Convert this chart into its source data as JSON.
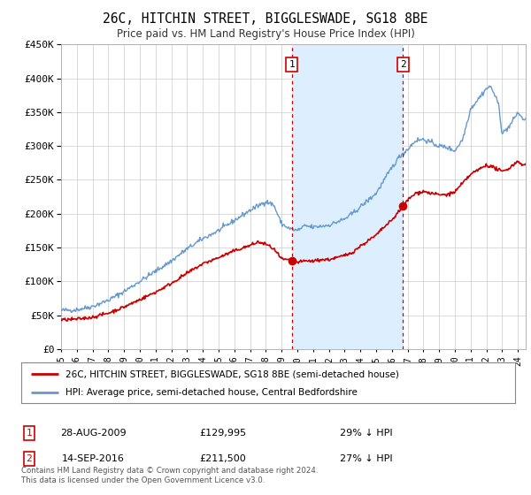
{
  "title": "26C, HITCHIN STREET, BIGGLESWADE, SG18 8BE",
  "subtitle": "Price paid vs. HM Land Registry's House Price Index (HPI)",
  "red_label": "26C, HITCHIN STREET, BIGGLESWADE, SG18 8BE (semi-detached house)",
  "blue_label": "HPI: Average price, semi-detached house, Central Bedfordshire",
  "footer": "Contains HM Land Registry data © Crown copyright and database right 2024.\nThis data is licensed under the Open Government Licence v3.0.",
  "sale1_date": "28-AUG-2009",
  "sale1_price": "£129,995",
  "sale1_hpi": "29% ↓ HPI",
  "sale1_year": 2009.65,
  "sale1_value": 129995,
  "sale2_date": "14-SEP-2016",
  "sale2_price": "£211,500",
  "sale2_hpi": "27% ↓ HPI",
  "sale2_year": 2016.7,
  "sale2_value": 211500,
  "red_color": "#cc0000",
  "blue_color": "#6699cc",
  "shading_color": "#ddeeff",
  "ylim": [
    0,
    450000
  ],
  "xlim_start": 1995.0,
  "xlim_end": 2024.5,
  "background_color": "#ffffff",
  "grid_color": "#cccccc",
  "hpi_anchors_x": [
    1995,
    1996,
    1997,
    1998,
    1999,
    2000,
    2001,
    2002,
    2003,
    2004,
    2005,
    2006,
    2007,
    2008,
    2008.5,
    2009,
    2009.5,
    2010,
    2010.5,
    2011,
    2012,
    2013,
    2013.5,
    2014,
    2015,
    2016,
    2016.5,
    2017,
    2017.5,
    2018,
    2018.5,
    2019,
    2019.5,
    2020,
    2020.5,
    2021,
    2021.5,
    2022,
    2022.3,
    2022.8,
    2023,
    2023.5,
    2024,
    2024.3
  ],
  "hpi_anchors_y": [
    57000,
    58000,
    63000,
    72000,
    85000,
    100000,
    115000,
    130000,
    148000,
    163000,
    175000,
    190000,
    205000,
    218000,
    213000,
    185000,
    178000,
    175000,
    182000,
    180000,
    183000,
    192000,
    200000,
    210000,
    230000,
    268000,
    285000,
    295000,
    308000,
    310000,
    305000,
    300000,
    298000,
    293000,
    310000,
    355000,
    370000,
    385000,
    388000,
    360000,
    318000,
    330000,
    350000,
    340000
  ],
  "red_anchors_x": [
    1995,
    1996,
    1997,
    1998,
    1999,
    2000,
    2001,
    2002,
    2003,
    2004,
    2005,
    2006,
    2007,
    2007.5,
    2008,
    2008.5,
    2009,
    2009.65,
    2010,
    2010.5,
    2011,
    2011.5,
    2012,
    2012.5,
    2013,
    2013.5,
    2014,
    2015,
    2015.5,
    2016,
    2016.7,
    2017,
    2017.5,
    2018,
    2018.5,
    2019,
    2019.5,
    2020,
    2020.5,
    2021,
    2021.5,
    2022,
    2022.5,
    2023,
    2023.5,
    2024,
    2024.3
  ],
  "red_anchors_y": [
    43000,
    44000,
    47000,
    53000,
    62000,
    73000,
    84000,
    97000,
    112000,
    126000,
    135000,
    145000,
    153000,
    158000,
    155000,
    148000,
    133000,
    129995,
    128000,
    130000,
    130000,
    132000,
    132000,
    135000,
    138000,
    143000,
    152000,
    168000,
    180000,
    190000,
    211500,
    220000,
    230000,
    233000,
    230000,
    228000,
    228000,
    232000,
    245000,
    258000,
    265000,
    272000,
    268000,
    262000,
    268000,
    278000,
    272000
  ]
}
